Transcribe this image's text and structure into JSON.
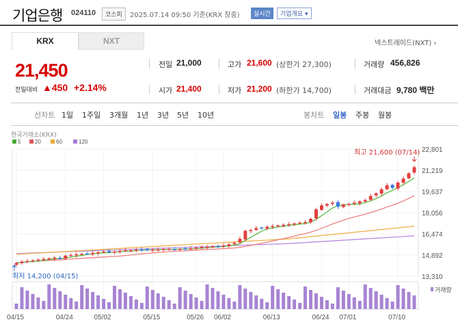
{
  "header": {
    "name": "기업은행",
    "code": "024110",
    "market": "코스피",
    "timestamp": "2025.07.14 09:50  기준(KRX 장중)",
    "realtime": "실시간",
    "info": "기업개요 ▾"
  },
  "tabs": {
    "krx": "KRX",
    "nxt": "NXT",
    "nxt_link": "넥스트레이드(NXT) ›"
  },
  "quote": {
    "price": "21,450",
    "change_label": "전일대비",
    "change": "▲450",
    "change_pct": "+2.14%",
    "prev_label": "전일",
    "prev": "21,000",
    "open_label": "시가",
    "open": "21,400",
    "high_label": "고가",
    "high": "21,600",
    "high_note": "(상한가 27,300)",
    "low_label": "저가",
    "low": "21,200",
    "low_note": "(하한가 14,700)",
    "vol_label": "거래량",
    "vol": "456,826",
    "amt_label": "거래대금",
    "amt": "9,780 백만"
  },
  "periods": {
    "chart_type_label": "선차트",
    "items": [
      "1일",
      "1주일",
      "3개월",
      "1년",
      "3년",
      "5년",
      "10년"
    ],
    "candle_label": "봉차트",
    "candle_items": [
      "일봉",
      "주봉",
      "월봉"
    ],
    "candle_selected": 0
  },
  "chart_labels": {
    "source": "한국거래소(KRX)",
    "ma": [
      {
        "label": "5",
        "color": "#44aa33"
      },
      {
        "label": "20",
        "color": "#e05a5a"
      },
      {
        "label": "60",
        "color": "#f0a830"
      },
      {
        "label": "120",
        "color": "#a77ad6"
      }
    ],
    "max_note": "최고 21,600 (07/14)",
    "min_note": "최저 14,200 (04/15)",
    "vol_legend": "거래량"
  },
  "chart_data": {
    "type": "candlestick",
    "y_ticks": [
      "22,801",
      "21,219",
      "19,637",
      "18,056",
      "16,474",
      "14,892",
      "13,310"
    ],
    "x_ticks": [
      "04/15",
      "04/24",
      "05/02",
      "05/15",
      "05/26",
      "06/02",
      "06/13",
      "06/24",
      "07/01",
      "07/10"
    ],
    "ylim": [
      13310,
      22801
    ],
    "closes": [
      14300,
      14400,
      14450,
      14500,
      14550,
      14600,
      14650,
      14700,
      14600,
      14850,
      14900,
      14950,
      14980,
      15000,
      15050,
      15100,
      15150,
      15100,
      15150,
      15200,
      15250,
      15250,
      15300,
      15300,
      15250,
      15300,
      15300,
      15350,
      15350,
      15300,
      15350,
      15350,
      15400,
      15450,
      15500,
      15500,
      15550,
      15500,
      15600,
      15700,
      15800,
      16100,
      16700,
      16750,
      16900,
      16900,
      17000,
      17050,
      17100,
      17150,
      17200,
      17250,
      17300,
      17350,
      17600,
      18300,
      18600,
      18700,
      18800,
      18500,
      18650,
      18700,
      18800,
      18900,
      19000,
      19300,
      19500,
      19800,
      20100,
      19900,
      20300,
      20600,
      21000,
      21450
    ],
    "max": {
      "value": 21600,
      "date": "07/14"
    },
    "min": {
      "value": 14200,
      "date": "04/15"
    }
  }
}
